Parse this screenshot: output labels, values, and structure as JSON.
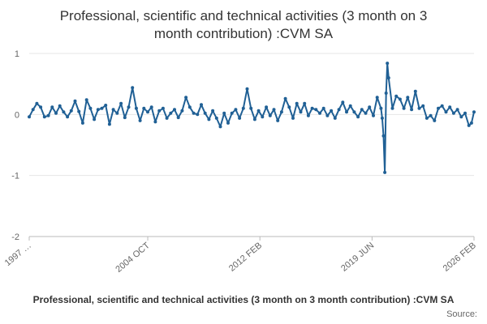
{
  "chart_data": {
    "type": "line",
    "title": "Professional, scientific and technical activities (3 month on 3 month contribution) :CVM SA",
    "title_lines": [
      "Professional, scientific and technical activities (3 month on 3",
      "month contribution) :CVM SA"
    ],
    "xlabel": "",
    "ylabel": "",
    "ylim": [
      -2,
      1
    ],
    "yticks": [
      1,
      0,
      -1,
      -2
    ],
    "xlim": [
      "1997 JAN",
      "2026 FEB"
    ],
    "xticks": [
      "1997 …",
      "2004 OCT",
      "2012 FEB",
      "2019 JUN",
      "2026 FEB"
    ],
    "grid": true,
    "series_color": "#206095",
    "legend": "Professional, scientific and technical activities (3 month on 3 month contribution) :CVM SA",
    "source": "Source:",
    "series": [
      {
        "name": "Professional, scientific and technical activities (3 month on 3 month contribution) :CVM SA",
        "points": [
          [
            "1997 JAN",
            -0.04
          ],
          [
            "1997 APR",
            0.08
          ],
          [
            "1997 JUL",
            0.18
          ],
          [
            "1997 OCT",
            0.12
          ],
          [
            "1998 JAN",
            -0.04
          ],
          [
            "1998 APR",
            -0.02
          ],
          [
            "1998 JUL",
            0.12
          ],
          [
            "1998 OCT",
            0.02
          ],
          [
            "1999 JAN",
            0.14
          ],
          [
            "1999 APR",
            0.04
          ],
          [
            "1999 JUL",
            -0.04
          ],
          [
            "1999 OCT",
            0.06
          ],
          [
            "2000 JAN",
            0.22
          ],
          [
            "2000 APR",
            0.05
          ],
          [
            "2000 JUL",
            -0.14
          ],
          [
            "2000 OCT",
            0.24
          ],
          [
            "2001 JAN",
            0.1
          ],
          [
            "2001 APR",
            -0.08
          ],
          [
            "2001 JUL",
            0.08
          ],
          [
            "2001 OCT",
            0.1
          ],
          [
            "2002 JAN",
            0.15
          ],
          [
            "2002 APR",
            -0.16
          ],
          [
            "2002 JUL",
            0.08
          ],
          [
            "2002 OCT",
            0.02
          ],
          [
            "2003 JAN",
            0.18
          ],
          [
            "2003 APR",
            -0.05
          ],
          [
            "2003 JUL",
            0.12
          ],
          [
            "2003 OCT",
            0.44
          ],
          [
            "2004 JAN",
            0.1
          ],
          [
            "2004 APR",
            -0.1
          ],
          [
            "2004 JUL",
            0.1
          ],
          [
            "2004 OCT",
            0.04
          ],
          [
            "2005 JAN",
            0.12
          ],
          [
            "2005 APR",
            -0.12
          ],
          [
            "2005 JUL",
            0.06
          ],
          [
            "2005 OCT",
            0.1
          ],
          [
            "2006 JAN",
            -0.06
          ],
          [
            "2006 APR",
            0.02
          ],
          [
            "2006 JUL",
            0.08
          ],
          [
            "2006 OCT",
            -0.05
          ],
          [
            "2007 JAN",
            0.06
          ],
          [
            "2007 APR",
            0.28
          ],
          [
            "2007 JUL",
            0.12
          ],
          [
            "2007 OCT",
            0.02
          ],
          [
            "2008 JAN",
            0.0
          ],
          [
            "2008 APR",
            0.16
          ],
          [
            "2008 JUL",
            0.02
          ],
          [
            "2008 OCT",
            -0.08
          ],
          [
            "2009 JAN",
            0.06
          ],
          [
            "2009 APR",
            -0.06
          ],
          [
            "2009 JUL",
            -0.2
          ],
          [
            "2009 OCT",
            0.02
          ],
          [
            "2010 JAN",
            -0.14
          ],
          [
            "2010 APR",
            0.02
          ],
          [
            "2010 JUL",
            0.08
          ],
          [
            "2010 OCT",
            -0.06
          ],
          [
            "2011 JAN",
            0.1
          ],
          [
            "2011 APR",
            0.42
          ],
          [
            "2011 JUL",
            0.1
          ],
          [
            "2011 OCT",
            -0.08
          ],
          [
            "2012 JAN",
            0.06
          ],
          [
            "2012 APR",
            -0.04
          ],
          [
            "2012 JUL",
            0.12
          ],
          [
            "2012 OCT",
            -0.02
          ],
          [
            "2013 JAN",
            0.08
          ],
          [
            "2013 APR",
            -0.1
          ],
          [
            "2013 JUL",
            0.04
          ],
          [
            "2013 OCT",
            0.26
          ],
          [
            "2014 JAN",
            0.12
          ],
          [
            "2014 APR",
            -0.06
          ],
          [
            "2014 JUL",
            0.18
          ],
          [
            "2014 OCT",
            0.04
          ],
          [
            "2015 JAN",
            0.18
          ],
          [
            "2015 APR",
            -0.02
          ],
          [
            "2015 JUL",
            0.1
          ],
          [
            "2015 OCT",
            0.08
          ],
          [
            "2016 JAN",
            0.02
          ],
          [
            "2016 APR",
            0.1
          ],
          [
            "2016 JUL",
            -0.02
          ],
          [
            "2016 OCT",
            0.06
          ],
          [
            "2017 JAN",
            -0.06
          ],
          [
            "2017 APR",
            0.08
          ],
          [
            "2017 JUL",
            0.2
          ],
          [
            "2017 OCT",
            0.04
          ],
          [
            "2018 JAN",
            0.14
          ],
          [
            "2018 APR",
            0.04
          ],
          [
            "2018 JUL",
            -0.04
          ],
          [
            "2018 OCT",
            0.08
          ],
          [
            "2019 JAN",
            0.02
          ],
          [
            "2019 APR",
            0.12
          ],
          [
            "2019 JUL",
            -0.02
          ],
          [
            "2019 OCT",
            0.28
          ],
          [
            "2020 JAN",
            0.1
          ],
          [
            "2020 FEB",
            -0.06
          ],
          [
            "2020 MAR",
            -0.35
          ],
          [
            "2020 APR",
            -0.95
          ],
          [
            "2020 MAY",
            0.35
          ],
          [
            "2020 JUN",
            0.84
          ],
          [
            "2020 JUL",
            0.6
          ],
          [
            "2020 OCT",
            0.1
          ],
          [
            "2021 JAN",
            0.3
          ],
          [
            "2021 APR",
            0.25
          ],
          [
            "2021 JUL",
            0.1
          ],
          [
            "2021 OCT",
            0.28
          ],
          [
            "2022 JAN",
            0.08
          ],
          [
            "2022 APR",
            0.38
          ],
          [
            "2022 JUL",
            0.1
          ],
          [
            "2022 OCT",
            0.14
          ],
          [
            "2023 JAN",
            -0.06
          ],
          [
            "2023 APR",
            -0.02
          ],
          [
            "2023 JUL",
            -0.1
          ],
          [
            "2023 OCT",
            0.1
          ],
          [
            "2024 JAN",
            0.14
          ],
          [
            "2024 APR",
            0.04
          ],
          [
            "2024 JUL",
            0.12
          ],
          [
            "2024 OCT",
            0.02
          ],
          [
            "2025 JAN",
            0.08
          ],
          [
            "2025 APR",
            -0.04
          ],
          [
            "2025 JUL",
            0.02
          ],
          [
            "2025 OCT",
            -0.18
          ],
          [
            "2025 DEC",
            -0.14
          ],
          [
            "2026 FEB",
            0.04
          ]
        ]
      }
    ]
  }
}
